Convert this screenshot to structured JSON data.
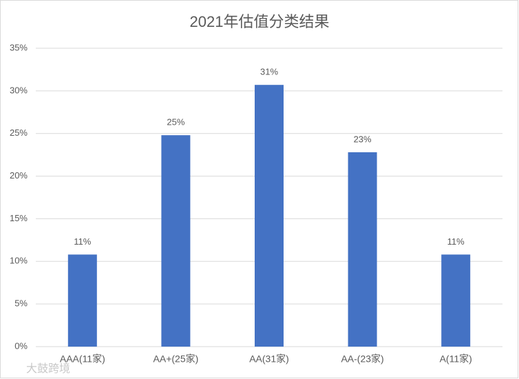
{
  "chart_data": {
    "type": "bar",
    "title": "2021年估值分类结果",
    "categories": [
      "AAA(11家)",
      "AA+(25家)",
      "AA(31家)",
      "AA-(23家)",
      "A(11家)"
    ],
    "values": [
      10.8,
      24.8,
      30.7,
      22.8,
      10.8
    ],
    "value_labels": [
      "11%",
      "25%",
      "31%",
      "23%",
      "11%"
    ],
    "color": "#4472c4",
    "ylim": [
      0,
      35
    ],
    "yticks": [
      {
        "value": 0,
        "label": "0%"
      },
      {
        "value": 5,
        "label": "5%"
      },
      {
        "value": 10,
        "label": "10%"
      },
      {
        "value": 15,
        "label": "15%"
      },
      {
        "value": 20,
        "label": "20%"
      },
      {
        "value": 25,
        "label": "25%"
      },
      {
        "value": 30,
        "label": "30%"
      },
      {
        "value": 35,
        "label": "35%"
      }
    ],
    "grid": true,
    "watermark": "大鼓跨境"
  }
}
